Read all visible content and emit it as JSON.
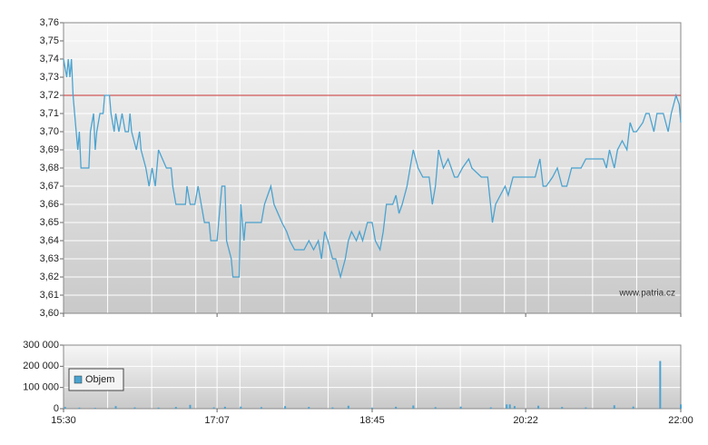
{
  "chart_data": [
    {
      "type": "line",
      "x": [
        "15:30",
        "15:32",
        "15:33",
        "15:34",
        "15:35",
        "15:36",
        "15:37",
        "15:39",
        "15:40",
        "15:41",
        "15:46",
        "15:47",
        "15:49",
        "15:50",
        "15:51",
        "15:53",
        "15:55",
        "15:56",
        "15:59",
        "16:00",
        "16:02",
        "16:03",
        "16:05",
        "16:07",
        "16:09",
        "16:11",
        "16:12",
        "16:13",
        "16:16",
        "16:18",
        "16:19",
        "16:22",
        "16:24",
        "16:26",
        "16:28",
        "16:30",
        "16:35",
        "16:38",
        "16:39",
        "16:41",
        "16:47",
        "16:48",
        "16:50",
        "16:53",
        "16:55",
        "16:57",
        "16:59",
        "17:02",
        "17:03",
        "17:07",
        "17:10",
        "17:12",
        "17:13",
        "17:16",
        "17:17",
        "17:21",
        "17:22",
        "17:24",
        "17:25",
        "17:35",
        "17:37",
        "17:41",
        "17:43",
        "17:48",
        "17:51",
        "17:53",
        "17:56",
        "18:02",
        "18:05",
        "18:08",
        "18:11",
        "18:13",
        "18:15",
        "18:17",
        "18:20",
        "18:22",
        "18:25",
        "18:28",
        "18:30",
        "18:32",
        "18:35",
        "18:37",
        "18:39",
        "18:42",
        "18:45",
        "18:47",
        "18:50",
        "18:52",
        "18:54",
        "18:58",
        "19:00",
        "19:02",
        "19:04",
        "19:07",
        "19:09",
        "19:11",
        "19:14",
        "19:17",
        "19:21",
        "19:23",
        "19:25",
        "19:27",
        "19:30",
        "19:33",
        "19:37",
        "19:39",
        "19:42",
        "19:46",
        "19:48",
        "19:54",
        "19:58",
        "20:01",
        "20:03",
        "20:06",
        "20:09",
        "20:11",
        "20:14",
        "20:28",
        "20:31",
        "20:33",
        "20:35",
        "20:39",
        "20:42",
        "20:45",
        "20:48",
        "20:51",
        "20:57",
        "21:00",
        "21:11",
        "21:13",
        "21:15",
        "21:18",
        "21:20",
        "21:23",
        "21:26",
        "21:28",
        "21:30",
        "21:32",
        "21:36",
        "21:38",
        "21:40",
        "21:43",
        "21:45",
        "21:49",
        "21:52",
        "21:54",
        "21:57",
        "21:59",
        "22:00"
      ],
      "series": [
        {
          "color": "#4ba3d0",
          "values": [
            3.74,
            3.73,
            3.74,
            3.73,
            3.74,
            3.72,
            3.71,
            3.69,
            3.7,
            3.68,
            3.68,
            3.7,
            3.71,
            3.69,
            3.7,
            3.71,
            3.71,
            3.72,
            3.72,
            3.71,
            3.7,
            3.71,
            3.7,
            3.71,
            3.7,
            3.7,
            3.71,
            3.7,
            3.69,
            3.7,
            3.69,
            3.68,
            3.67,
            3.68,
            3.67,
            3.69,
            3.68,
            3.68,
            3.67,
            3.66,
            3.66,
            3.67,
            3.66,
            3.66,
            3.67,
            3.66,
            3.65,
            3.65,
            3.64,
            3.64,
            3.67,
            3.67,
            3.64,
            3.63,
            3.62,
            3.62,
            3.66,
            3.64,
            3.65,
            3.65,
            3.66,
            3.67,
            3.66,
            3.65,
            3.645,
            3.64,
            3.635,
            3.635,
            3.64,
            3.635,
            3.64,
            3.63,
            3.645,
            3.64,
            3.63,
            3.63,
            3.62,
            3.63,
            3.64,
            3.645,
            3.64,
            3.645,
            3.64,
            3.65,
            3.65,
            3.64,
            3.635,
            3.645,
            3.66,
            3.66,
            3.665,
            3.655,
            3.66,
            3.67,
            3.68,
            3.69,
            3.68,
            3.675,
            3.675,
            3.66,
            3.67,
            3.69,
            3.68,
            3.685,
            3.675,
            3.675,
            3.68,
            3.685,
            3.68,
            3.675,
            3.675,
            3.65,
            3.66,
            3.665,
            3.67,
            3.665,
            3.675,
            3.675,
            3.685,
            3.67,
            3.67,
            3.675,
            3.68,
            3.67,
            3.67,
            3.68,
            3.68,
            3.685,
            3.685,
            3.68,
            3.69,
            3.68,
            3.69,
            3.695,
            3.69,
            3.705,
            3.7,
            3.7,
            3.705,
            3.71,
            3.71,
            3.7,
            3.71,
            3.71,
            3.7,
            3.71,
            3.72,
            3.715,
            3.705
          ]
        }
      ],
      "xlim": [
        "15:30",
        "22:00"
      ],
      "ylim": [
        3.6,
        3.76
      ],
      "yticks": [
        {
          "value": 3.6,
          "label": "3,60"
        },
        {
          "value": 3.61,
          "label": "3,61"
        },
        {
          "value": 3.62,
          "label": "3,62"
        },
        {
          "value": 3.63,
          "label": "3,63"
        },
        {
          "value": 3.64,
          "label": "3,64"
        },
        {
          "value": 3.65,
          "label": "3,65"
        },
        {
          "value": 3.66,
          "label": "3,66"
        },
        {
          "value": 3.67,
          "label": "3,67"
        },
        {
          "value": 3.68,
          "label": "3,68"
        },
        {
          "value": 3.69,
          "label": "3,69"
        },
        {
          "value": 3.7,
          "label": "3,70"
        },
        {
          "value": 3.71,
          "label": "3,71"
        },
        {
          "value": 3.72,
          "label": "3,72"
        },
        {
          "value": 3.73,
          "label": "3,73"
        },
        {
          "value": 3.74,
          "label": "3,74"
        },
        {
          "value": 3.75,
          "label": "3,75"
        },
        {
          "value": 3.76,
          "label": "3,76"
        }
      ],
      "reference_line": 3.72,
      "reference_color": "#cc3333",
      "annotation": "www.patria.cz",
      "grid": true
    },
    {
      "type": "bar",
      "x": [
        "15:31",
        "15:40",
        "15:50",
        "16:03",
        "16:15",
        "16:30",
        "16:41",
        "16:50",
        "17:05",
        "17:12",
        "17:22",
        "17:35",
        "17:50",
        "18:05",
        "18:20",
        "18:30",
        "18:45",
        "19:00",
        "19:11",
        "19:25",
        "19:41",
        "20:00",
        "20:10",
        "20:12",
        "20:15",
        "20:30",
        "20:45",
        "21:00",
        "21:18",
        "21:30",
        "21:47",
        "22:00"
      ],
      "series": [
        {
          "name": "Objem",
          "color": "#4ba3d0",
          "values": [
            8000,
            5000,
            4000,
            12000,
            6000,
            5000,
            8000,
            18000,
            6000,
            9000,
            10000,
            7000,
            12000,
            8000,
            6000,
            14000,
            5000,
            9000,
            15000,
            7000,
            10000,
            6000,
            20000,
            20000,
            12000,
            14000,
            8000,
            6000,
            16000,
            10000,
            225000,
            20000
          ]
        }
      ],
      "xlim": [
        "15:30",
        "22:00"
      ],
      "xticks": [
        "15:30",
        "17:07",
        "18:45",
        "20:22",
        "22:00"
      ],
      "ylim": [
        0,
        300000
      ],
      "yticks": [
        0,
        {
          "value": 100000,
          "label": "100 000"
        },
        {
          "value": 200000,
          "label": "200 000"
        },
        {
          "value": 300000,
          "label": "300 000"
        }
      ],
      "grid": true,
      "legend": "upper left"
    }
  ]
}
